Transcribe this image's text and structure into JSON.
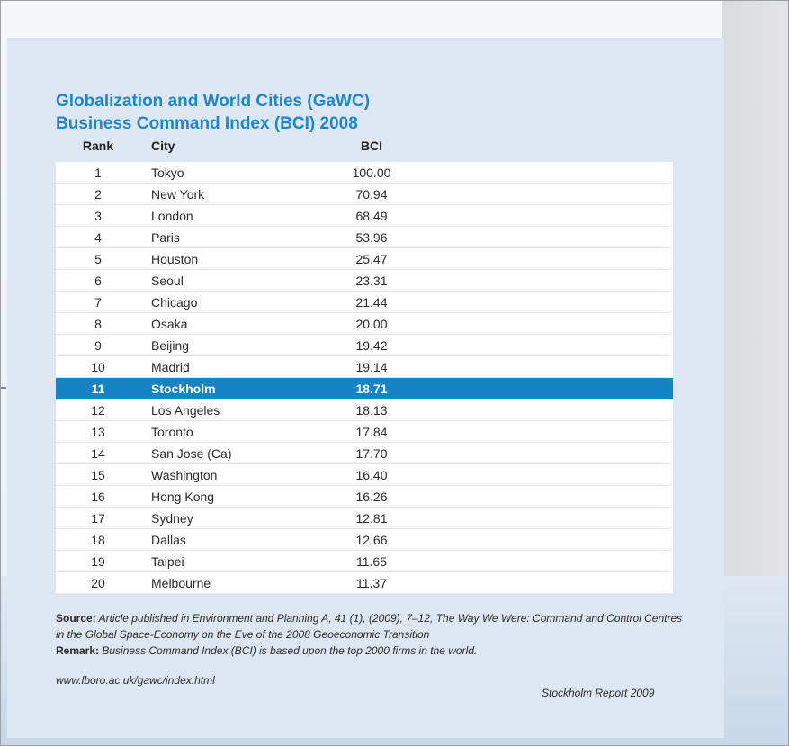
{
  "title_line1": "Globalization and World Cities (GaWC)",
  "title_line2": "Business Command Index (BCI) 2008",
  "columns": {
    "rank": "Rank",
    "city": "City",
    "bci": "BCI"
  },
  "rows": [
    {
      "rank": "1",
      "city": "Tokyo",
      "bci": "100.00"
    },
    {
      "rank": "2",
      "city": "New York",
      "bci": "70.94"
    },
    {
      "rank": "3",
      "city": "London",
      "bci": "68.49"
    },
    {
      "rank": "4",
      "city": "Paris",
      "bci": "53.96"
    },
    {
      "rank": "5",
      "city": "Houston",
      "bci": "25.47"
    },
    {
      "rank": "6",
      "city": "Seoul",
      "bci": "23.31"
    },
    {
      "rank": "7",
      "city": "Chicago",
      "bci": "21.44"
    },
    {
      "rank": "8",
      "city": "Osaka",
      "bci": "20.00"
    },
    {
      "rank": "9",
      "city": "Beijing",
      "bci": "19.42"
    },
    {
      "rank": "10",
      "city": "Madrid",
      "bci": "19.14"
    },
    {
      "rank": "11",
      "city": "Stockholm",
      "bci": "18.71"
    },
    {
      "rank": "12",
      "city": "Los Angeles",
      "bci": "18.13"
    },
    {
      "rank": "13",
      "city": "Toronto",
      "bci": "17.84"
    },
    {
      "rank": "14",
      "city": "San Jose (Ca)",
      "bci": "17.70"
    },
    {
      "rank": "15",
      "city": "Washington",
      "bci": "16.40"
    },
    {
      "rank": "16",
      "city": "Hong Kong",
      "bci": "16.26"
    },
    {
      "rank": "17",
      "city": "Sydney",
      "bci": "12.81"
    },
    {
      "rank": "18",
      "city": "Dallas",
      "bci": "12.66"
    },
    {
      "rank": "19",
      "city": "Taipei",
      "bci": "11.65"
    },
    {
      "rank": "20",
      "city": "Melbourne",
      "bci": "11.37"
    }
  ],
  "highlight_rank": "11",
  "highlight_color": "#1683c4",
  "title_color": "#1f87c8",
  "source_label": "Source:",
  "source_text": "Article published in Environment and Planning A, 41 (1), (2009), 7–12, The Way We Were: Command and Control Centres in the Global Space-Economy on the Eve of the 2008 Geoeconomic Transition",
  "remark_label": "Remark:",
  "remark_text": "Business Command Index (BCI) is based upon the top 2000 firms in the world.",
  "url": "www.lboro.ac.uk/gawc/index.html",
  "report": "Stockholm Report 2009"
}
